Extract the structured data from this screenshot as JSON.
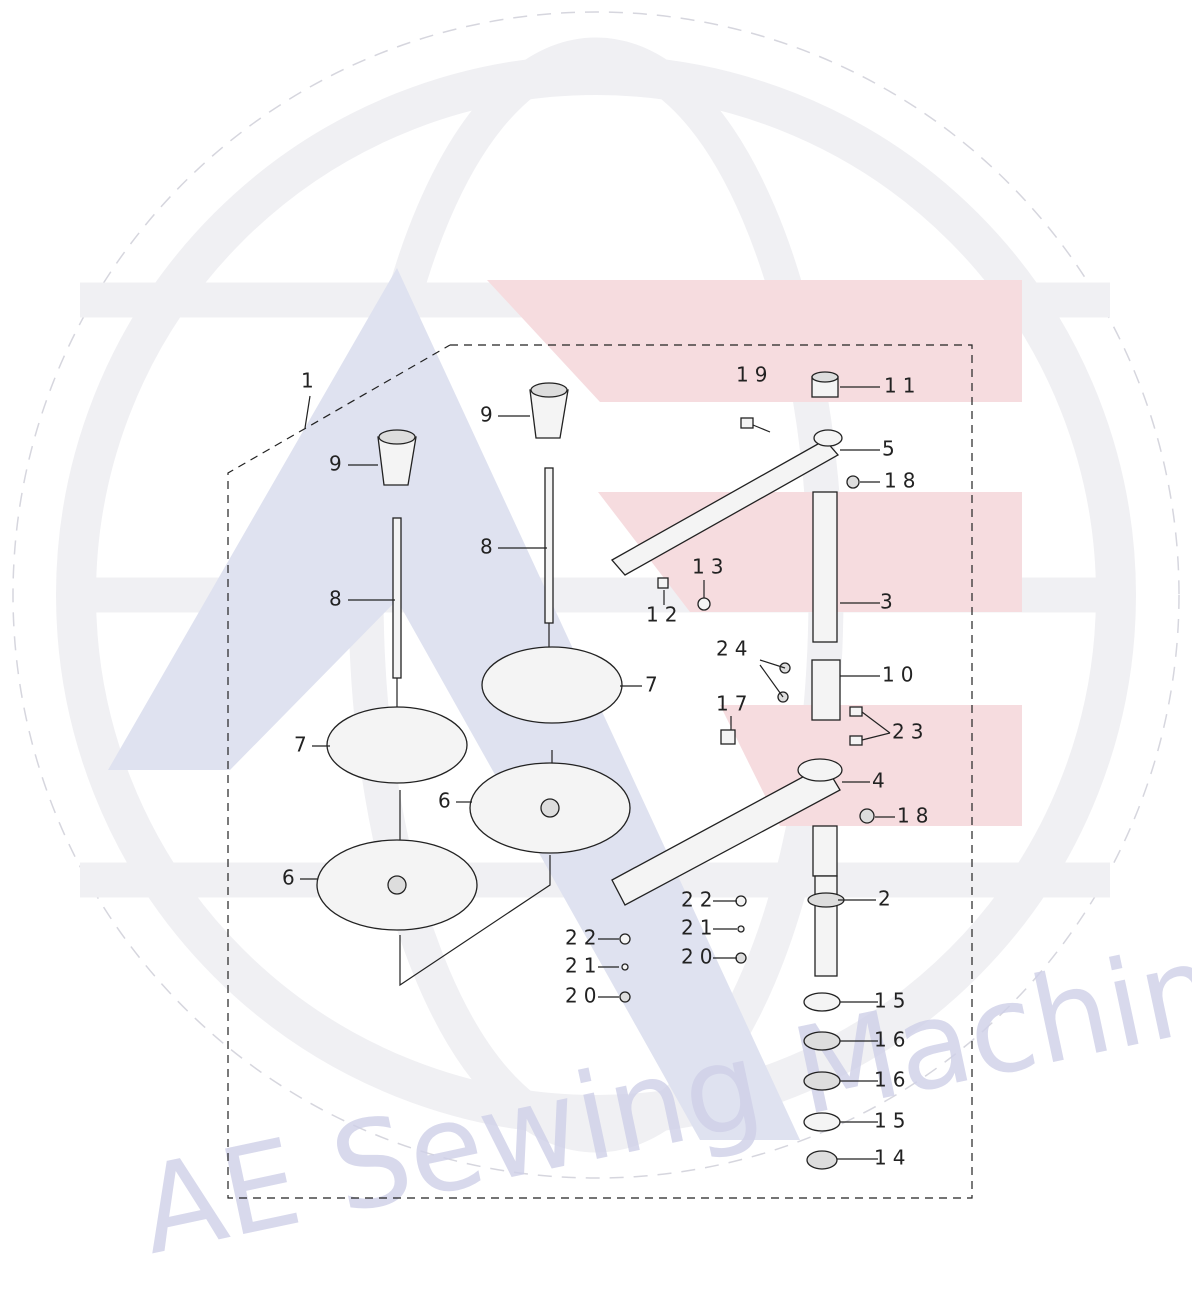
{
  "watermark": "AE Sewing Machines",
  "callouts": [
    "1",
    "9",
    "9",
    "8",
    "8",
    "7",
    "7",
    "6",
    "6",
    "19",
    "11",
    "5",
    "18",
    "13",
    "12",
    "3",
    "24",
    "10",
    "17",
    "23",
    "4",
    "18",
    "2",
    "22",
    "21",
    "20",
    "22",
    "21",
    "20",
    "15",
    "16",
    "16",
    "15",
    "14"
  ]
}
